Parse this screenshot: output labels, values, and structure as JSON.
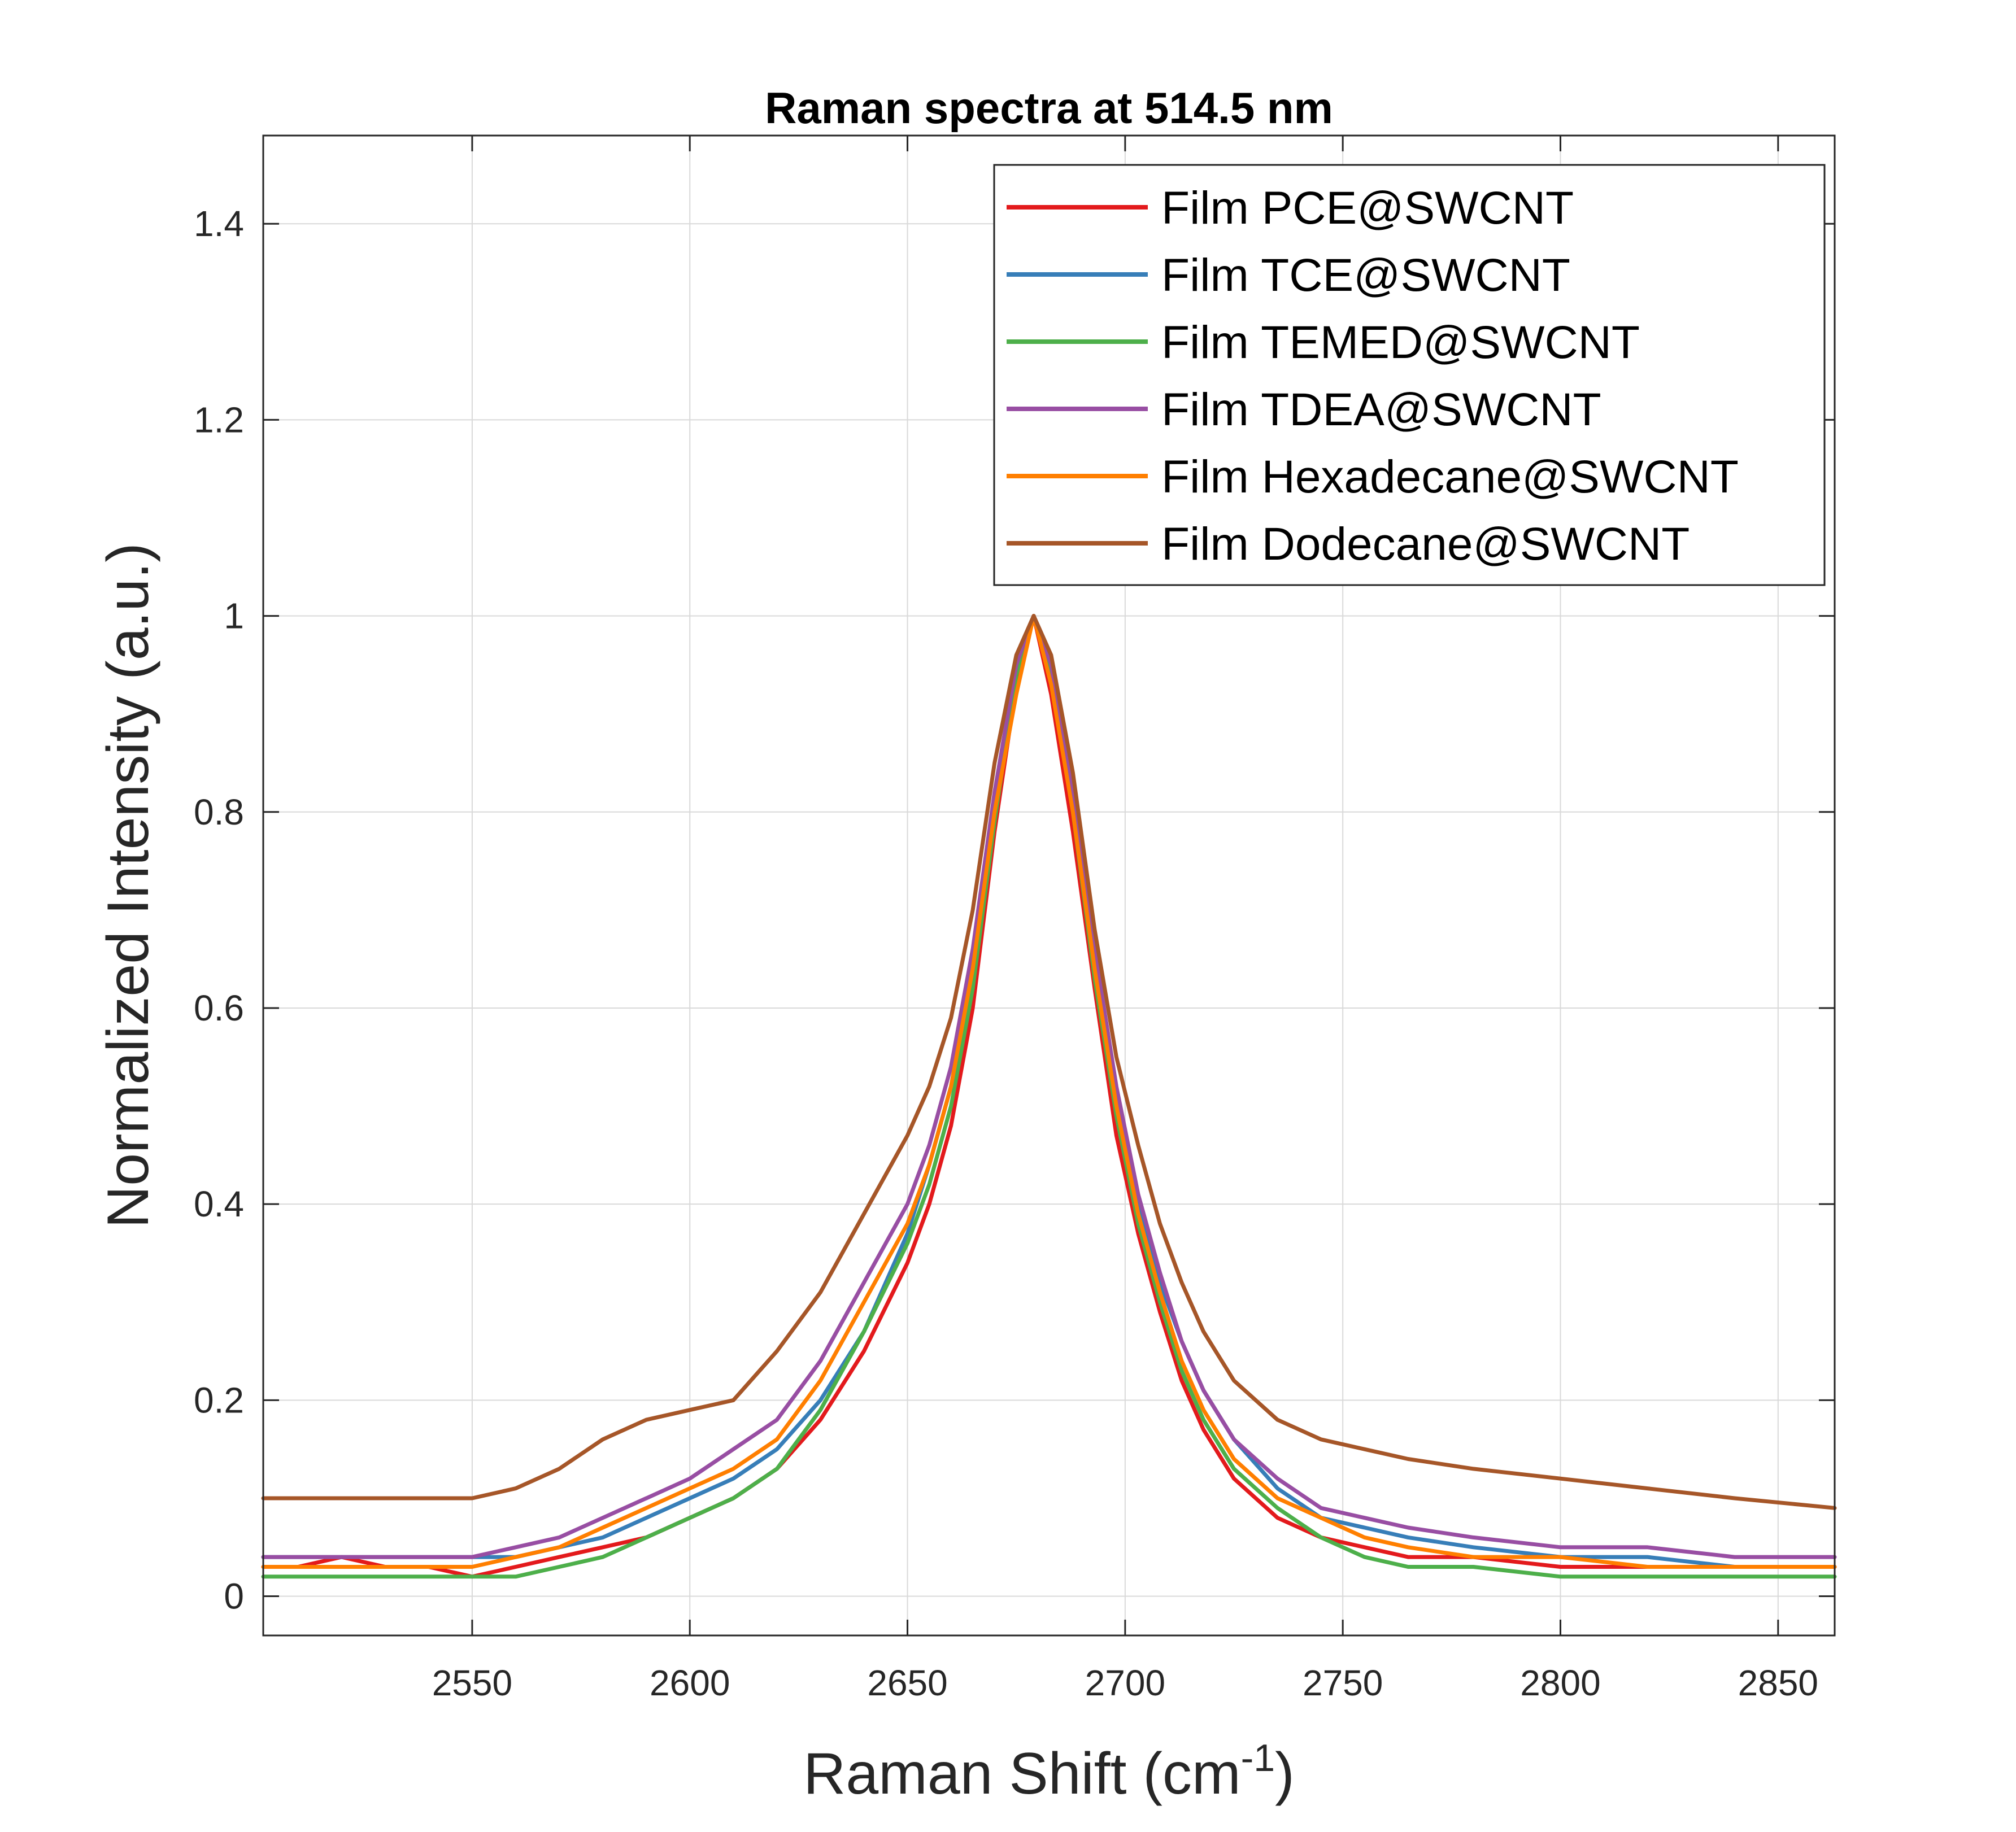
{
  "chart_data": {
    "type": "line",
    "title": "Raman spectra at 514.5 nm",
    "xlabel": "Raman Shift (cm",
    "xlabel_sup": "-1",
    "xlabel_end": ")",
    "ylabel": "Normalized Intensity (a.u.)",
    "xlim": [
      2502,
      2863
    ],
    "ylim": [
      -0.04,
      1.49
    ],
    "xticks": [
      2550,
      2600,
      2650,
      2700,
      2750,
      2800,
      2850
    ],
    "yticks": [
      0,
      0.2,
      0.4,
      0.6,
      0.8,
      1,
      1.2,
      1.4
    ],
    "ytick_labels": [
      "0",
      "0.2",
      "0.4",
      "0.6",
      "0.8",
      "1",
      "1.2",
      "1.4"
    ],
    "grid": true,
    "legend_position": "top-right",
    "series": [
      {
        "name": "Film PCE@SWCNT",
        "color": "#E31A1C",
        "x": [
          2502,
          2510,
          2520,
          2530,
          2540,
          2550,
          2560,
          2570,
          2580,
          2590,
          2600,
          2610,
          2620,
          2630,
          2640,
          2650,
          2655,
          2660,
          2665,
          2670,
          2675,
          2679,
          2683,
          2688,
          2693,
          2698,
          2703,
          2708,
          2713,
          2718,
          2725,
          2735,
          2745,
          2755,
          2765,
          2780,
          2800,
          2820,
          2840,
          2863
        ],
        "y": [
          0.03,
          0.03,
          0.04,
          0.03,
          0.03,
          0.02,
          0.03,
          0.04,
          0.05,
          0.06,
          0.08,
          0.1,
          0.13,
          0.18,
          0.25,
          0.34,
          0.4,
          0.48,
          0.6,
          0.78,
          0.93,
          1.0,
          0.92,
          0.78,
          0.62,
          0.47,
          0.37,
          0.29,
          0.22,
          0.17,
          0.12,
          0.08,
          0.06,
          0.05,
          0.04,
          0.04,
          0.03,
          0.03,
          0.03,
          0.03
        ]
      },
      {
        "name": "Film TCE@SWCNT",
        "color": "#377EB8",
        "x": [
          2502,
          2510,
          2520,
          2530,
          2540,
          2550,
          2560,
          2570,
          2580,
          2590,
          2600,
          2610,
          2620,
          2630,
          2640,
          2650,
          2655,
          2660,
          2665,
          2670,
          2675,
          2679,
          2683,
          2688,
          2693,
          2698,
          2703,
          2708,
          2713,
          2718,
          2725,
          2735,
          2745,
          2755,
          2765,
          2780,
          2800,
          2820,
          2840,
          2863
        ],
        "y": [
          0.04,
          0.04,
          0.04,
          0.04,
          0.04,
          0.04,
          0.04,
          0.05,
          0.06,
          0.08,
          0.1,
          0.12,
          0.15,
          0.2,
          0.27,
          0.37,
          0.44,
          0.52,
          0.64,
          0.8,
          0.94,
          1.0,
          0.94,
          0.8,
          0.64,
          0.5,
          0.4,
          0.32,
          0.26,
          0.21,
          0.16,
          0.11,
          0.08,
          0.07,
          0.06,
          0.05,
          0.04,
          0.04,
          0.03,
          0.03
        ]
      },
      {
        "name": "Film TEMED@SWCNT",
        "color": "#4DAF4A",
        "x": [
          2502,
          2510,
          2520,
          2530,
          2540,
          2550,
          2560,
          2570,
          2580,
          2590,
          2600,
          2610,
          2620,
          2630,
          2640,
          2650,
          2655,
          2660,
          2665,
          2670,
          2675,
          2679,
          2683,
          2688,
          2693,
          2698,
          2703,
          2708,
          2713,
          2718,
          2725,
          2735,
          2745,
          2755,
          2765,
          2780,
          2800,
          2820,
          2840,
          2863
        ],
        "y": [
          0.02,
          0.02,
          0.02,
          0.02,
          0.02,
          0.02,
          0.02,
          0.03,
          0.04,
          0.06,
          0.08,
          0.1,
          0.13,
          0.19,
          0.27,
          0.36,
          0.42,
          0.5,
          0.62,
          0.79,
          0.94,
          1.0,
          0.94,
          0.8,
          0.63,
          0.49,
          0.38,
          0.3,
          0.23,
          0.18,
          0.13,
          0.09,
          0.06,
          0.04,
          0.03,
          0.03,
          0.02,
          0.02,
          0.02,
          0.02
        ]
      },
      {
        "name": "Film TDEA@SWCNT",
        "color": "#984EA3",
        "x": [
          2502,
          2510,
          2520,
          2530,
          2540,
          2550,
          2560,
          2570,
          2580,
          2590,
          2600,
          2610,
          2620,
          2630,
          2640,
          2650,
          2655,
          2660,
          2665,
          2670,
          2675,
          2679,
          2683,
          2688,
          2693,
          2698,
          2703,
          2708,
          2713,
          2718,
          2725,
          2735,
          2745,
          2755,
          2765,
          2780,
          2800,
          2820,
          2840,
          2863
        ],
        "y": [
          0.04,
          0.04,
          0.04,
          0.04,
          0.04,
          0.04,
          0.05,
          0.06,
          0.08,
          0.1,
          0.12,
          0.15,
          0.18,
          0.24,
          0.32,
          0.4,
          0.46,
          0.54,
          0.66,
          0.82,
          0.95,
          1.0,
          0.95,
          0.82,
          0.66,
          0.52,
          0.41,
          0.33,
          0.26,
          0.21,
          0.16,
          0.12,
          0.09,
          0.08,
          0.07,
          0.06,
          0.05,
          0.05,
          0.04,
          0.04
        ]
      },
      {
        "name": "Film Hexadecane@SWCNT",
        "color": "#FF7F00",
        "x": [
          2502,
          2510,
          2520,
          2530,
          2540,
          2550,
          2560,
          2570,
          2580,
          2590,
          2600,
          2610,
          2620,
          2630,
          2640,
          2650,
          2655,
          2660,
          2665,
          2670,
          2675,
          2679,
          2683,
          2688,
          2693,
          2698,
          2703,
          2708,
          2713,
          2718,
          2725,
          2735,
          2745,
          2755,
          2765,
          2780,
          2800,
          2820,
          2840,
          2863
        ],
        "y": [
          0.03,
          0.03,
          0.03,
          0.03,
          0.03,
          0.03,
          0.04,
          0.05,
          0.07,
          0.09,
          0.11,
          0.13,
          0.16,
          0.22,
          0.3,
          0.38,
          0.44,
          0.52,
          0.64,
          0.8,
          0.92,
          1.0,
          0.93,
          0.8,
          0.64,
          0.5,
          0.39,
          0.31,
          0.24,
          0.19,
          0.14,
          0.1,
          0.08,
          0.06,
          0.05,
          0.04,
          0.04,
          0.03,
          0.03,
          0.03
        ]
      },
      {
        "name": "Film Dodecane@SWCNT",
        "color": "#A65628",
        "x": [
          2502,
          2510,
          2520,
          2530,
          2540,
          2550,
          2560,
          2570,
          2580,
          2590,
          2600,
          2610,
          2620,
          2630,
          2640,
          2650,
          2655,
          2660,
          2665,
          2670,
          2675,
          2679,
          2683,
          2688,
          2693,
          2698,
          2703,
          2708,
          2713,
          2718,
          2725,
          2735,
          2745,
          2755,
          2765,
          2780,
          2800,
          2820,
          2840,
          2863
        ],
        "y": [
          0.1,
          0.1,
          0.1,
          0.1,
          0.1,
          0.1,
          0.11,
          0.13,
          0.16,
          0.18,
          0.19,
          0.2,
          0.25,
          0.31,
          0.39,
          0.47,
          0.52,
          0.59,
          0.7,
          0.85,
          0.96,
          1.0,
          0.96,
          0.84,
          0.68,
          0.55,
          0.46,
          0.38,
          0.32,
          0.27,
          0.22,
          0.18,
          0.16,
          0.15,
          0.14,
          0.13,
          0.12,
          0.11,
          0.1,
          0.09
        ]
      }
    ]
  }
}
